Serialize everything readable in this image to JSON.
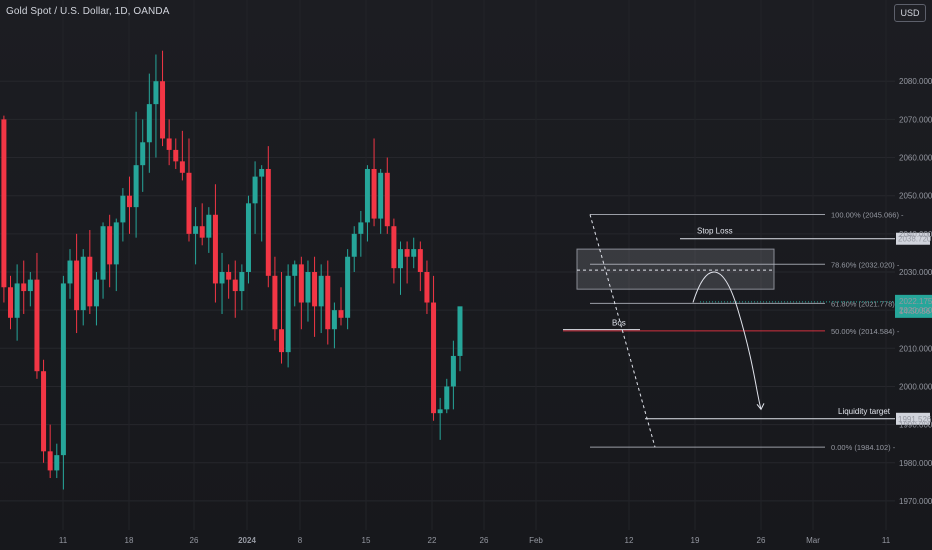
{
  "header": {
    "symbol_title": "Gold Spot / U.S. Dollar, 1D, OANDA",
    "currency_button": "USD"
  },
  "colors": {
    "up": "#26a69a",
    "down": "#f23645",
    "background": "#1a1b1f",
    "fib_line": "#b2b5be",
    "fib_50": "#f23645",
    "price_tag": "#26a69a"
  },
  "chart_data": {
    "type": "candlestick",
    "title": "Gold Spot / U.S. Dollar, 1D, OANDA",
    "ylim": [
      1965,
      2095
    ],
    "y_ticks": [
      "1970.000",
      "1980.000",
      "1990.000",
      "2000.000",
      "2010.000",
      "2020.000",
      "2030.000",
      "2040.000",
      "2050.000",
      "2060.000",
      "2070.000",
      "2080.000"
    ],
    "x_ticks": [
      "11",
      "18",
      "26",
      "2024",
      "8",
      "15",
      "22",
      "26",
      "Feb",
      "12",
      "19",
      "26",
      "Mar",
      "11"
    ],
    "candles": [
      [
        2070,
        2071,
        2022,
        2026
      ],
      [
        2026,
        2029,
        2015,
        2018
      ],
      [
        2018,
        2032,
        2012,
        2027
      ],
      [
        2027,
        2033,
        2019,
        2025
      ],
      [
        2025,
        2030,
        2021,
        2028
      ],
      [
        2028,
        2035,
        2002,
        2004
      ],
      [
        2004,
        2007,
        1980,
        1983
      ],
      [
        1983,
        1990,
        1976,
        1978
      ],
      [
        1978,
        1985,
        1976,
        1982
      ],
      [
        1982,
        2029,
        1973,
        2027
      ],
      [
        2027,
        2036,
        2023,
        2033
      ],
      [
        2033,
        2040,
        2014,
        2020
      ],
      [
        2020,
        2036,
        2016,
        2034
      ],
      [
        2034,
        2041,
        2019,
        2021
      ],
      [
        2021,
        2030,
        2016,
        2028
      ],
      [
        2028,
        2043,
        2023,
        2042
      ],
      [
        2042,
        2045,
        2026,
        2032
      ],
      [
        2032,
        2044,
        2025,
        2043
      ],
      [
        2043,
        2052,
        2038,
        2050
      ],
      [
        2050,
        2055,
        2040,
        2047
      ],
      [
        2047,
        2072,
        2039,
        2058
      ],
      [
        2058,
        2070,
        2051,
        2064
      ],
      [
        2064,
        2082,
        2056,
        2074
      ],
      [
        2074,
        2087,
        2060,
        2080
      ],
      [
        2080,
        2088,
        2063,
        2065
      ],
      [
        2065,
        2070,
        2058,
        2062
      ],
      [
        2062,
        2065,
        2057,
        2059
      ],
      [
        2059,
        2067,
        2054,
        2056
      ],
      [
        2056,
        2065,
        2038,
        2040
      ],
      [
        2040,
        2047,
        2032,
        2042
      ],
      [
        2042,
        2048,
        2037,
        2039
      ],
      [
        2039,
        2047,
        2035,
        2045
      ],
      [
        2045,
        2053,
        2022,
        2027
      ],
      [
        2027,
        2035,
        2019,
        2030
      ],
      [
        2030,
        2032,
        2023,
        2028
      ],
      [
        2028,
        2033,
        2018,
        2025
      ],
      [
        2025,
        2032,
        2020,
        2030
      ],
      [
        2030,
        2050,
        2027,
        2048
      ],
      [
        2048,
        2059,
        2040,
        2055
      ],
      [
        2055,
        2058,
        2038,
        2057
      ],
      [
        2057,
        2063,
        2026,
        2029
      ],
      [
        2029,
        2034,
        2012,
        2015
      ],
      [
        2015,
        2030,
        2006,
        2009
      ],
      [
        2009,
        2032,
        2005,
        2029
      ],
      [
        2029,
        2033,
        2021,
        2032
      ],
      [
        2032,
        2034,
        2015,
        2022
      ],
      [
        2022,
        2033,
        2017,
        2030
      ],
      [
        2030,
        2034,
        2013,
        2021
      ],
      [
        2021,
        2032,
        2014,
        2029
      ],
      [
        2029,
        2033,
        2011,
        2015
      ],
      [
        2015,
        2022,
        2010,
        2020
      ],
      [
        2020,
        2026,
        2016,
        2018
      ],
      [
        2018,
        2036,
        2015,
        2034
      ],
      [
        2034,
        2042,
        2030,
        2040
      ],
      [
        2040,
        2046,
        2034,
        2043
      ],
      [
        2043,
        2058,
        2038,
        2057
      ],
      [
        2057,
        2065,
        2042,
        2044
      ],
      [
        2044,
        2057,
        2040,
        2056
      ],
      [
        2056,
        2060,
        2040,
        2042
      ],
      [
        2042,
        2044,
        2027,
        2031
      ],
      [
        2031,
        2038,
        2024,
        2036
      ],
      [
        2036,
        2038,
        2027,
        2034
      ],
      [
        2034,
        2039,
        2031,
        2036
      ],
      [
        2036,
        2038,
        2025,
        2030
      ],
      [
        2030,
        2033,
        2019,
        2022
      ],
      [
        2022,
        2029,
        1991,
        1993
      ],
      [
        1993,
        1997,
        1986,
        1994
      ],
      [
        1994,
        2002,
        1993,
        2000
      ],
      [
        2000,
        2012,
        1994,
        2008
      ],
      [
        2008,
        2020,
        2004,
        2021
      ]
    ],
    "fibonacci": [
      {
        "label": "100.00% (2045.066)",
        "value": 2045.066
      },
      {
        "label": "78.60% (2032.020)",
        "value": 2032.02
      },
      {
        "label": "61.80% (2021.778)",
        "value": 2021.778
      },
      {
        "label": "50.00% (2014.584)",
        "value": 2014.584
      },
      {
        "label": "0.00% (1984.102)",
        "value": 1984.102
      }
    ],
    "annotations": {
      "stop_loss": {
        "label": "Stop Loss",
        "price": "2038.720",
        "value": 2038.72
      },
      "liquidity_target": {
        "label": "Liquidity target",
        "price": "1991.526",
        "value": 1991.526
      },
      "bos": {
        "label": "Bos",
        "value": 2014.9
      }
    },
    "last_price": {
      "price": "2022.175",
      "countdown": "14:50:56",
      "value": 2022.175
    }
  }
}
